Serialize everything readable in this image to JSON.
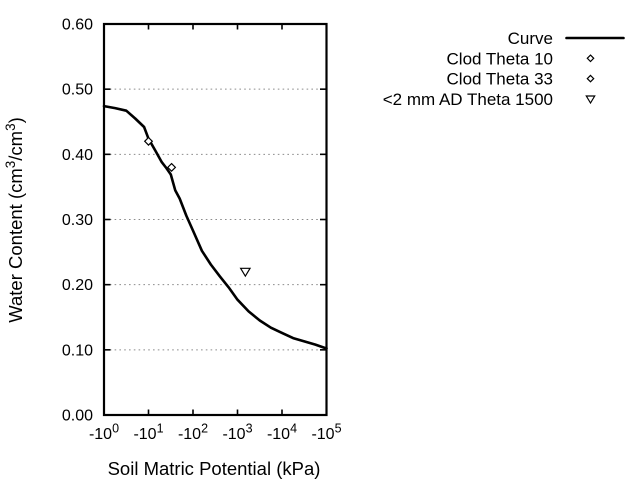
{
  "chart_data": {
    "type": "line",
    "title": "",
    "xlabel": "Soil Matric Potential (kPa)",
    "ylabel": "Water Content (cm³/cm³)",
    "ylabel_rich": [
      {
        "t": "Water Content (cm",
        "sup": false
      },
      {
        "t": "3",
        "sup": true
      },
      {
        "t": "/cm",
        "sup": false
      },
      {
        "t": "3",
        "sup": true
      },
      {
        "t": ")",
        "sup": false
      }
    ],
    "x_axis": {
      "scale": "negative log10 (kPa)",
      "tick_base": "-10",
      "tick_exponents": [
        0,
        1,
        2,
        3,
        4,
        5
      ],
      "decade_range": [
        0,
        5
      ]
    },
    "y_axis": {
      "range": [
        0,
        0.6
      ],
      "tick_values": [
        0,
        0.1,
        0.2,
        0.3,
        0.4,
        0.5,
        0.6
      ],
      "tick_labels": [
        "0.00",
        "0.10",
        "0.20",
        "0.30",
        "0.40",
        "0.50",
        "0.60"
      ],
      "grid_at": [
        0.1,
        0.2,
        0.3,
        0.4,
        0.5
      ]
    },
    "legend": [
      {
        "label": "Curve",
        "marker": "line"
      },
      {
        "label": "Clod Theta 10",
        "marker": "open-diamond"
      },
      {
        "label": "Clod Theta 33",
        "marker": "open-diamond"
      },
      {
        "label": "<2 mm AD Theta 1500",
        "marker": "open-triangle-down"
      }
    ],
    "series": [
      {
        "name": "Curve",
        "type": "line",
        "x_unit": "decade of negative kPa",
        "points": [
          [
            0.0,
            0.474
          ],
          [
            0.25,
            0.471
          ],
          [
            0.5,
            0.467
          ],
          [
            0.7,
            0.455
          ],
          [
            0.9,
            0.442
          ],
          [
            1.0,
            0.424
          ],
          [
            1.15,
            0.406
          ],
          [
            1.3,
            0.388
          ],
          [
            1.4,
            0.379
          ],
          [
            1.5,
            0.369
          ],
          [
            1.6,
            0.345
          ],
          [
            1.7,
            0.332
          ],
          [
            1.85,
            0.306
          ],
          [
            2.0,
            0.283
          ],
          [
            2.2,
            0.252
          ],
          [
            2.4,
            0.231
          ],
          [
            2.6,
            0.213
          ],
          [
            2.8,
            0.196
          ],
          [
            3.0,
            0.177
          ],
          [
            3.25,
            0.159
          ],
          [
            3.5,
            0.145
          ],
          [
            3.75,
            0.134
          ],
          [
            4.0,
            0.126
          ],
          [
            4.25,
            0.118
          ],
          [
            4.5,
            0.113
          ],
          [
            4.75,
            0.108
          ],
          [
            5.0,
            0.102
          ]
        ]
      },
      {
        "name": "Clod Theta 10",
        "type": "scatter",
        "marker": "open-diamond",
        "points_kpa": [
          [
            10,
            0.42
          ]
        ]
      },
      {
        "name": "Clod Theta 33",
        "type": "scatter",
        "marker": "open-diamond",
        "points_kpa": [
          [
            33,
            0.38
          ]
        ]
      },
      {
        "name": "<2 mm AD Theta 1500",
        "type": "scatter",
        "marker": "open-triangle-down",
        "points_kpa": [
          [
            1500,
            0.22
          ]
        ]
      }
    ],
    "colors": {
      "foreground": "#000000",
      "grid": "#8c8c8c",
      "background": "#ffffff"
    }
  }
}
